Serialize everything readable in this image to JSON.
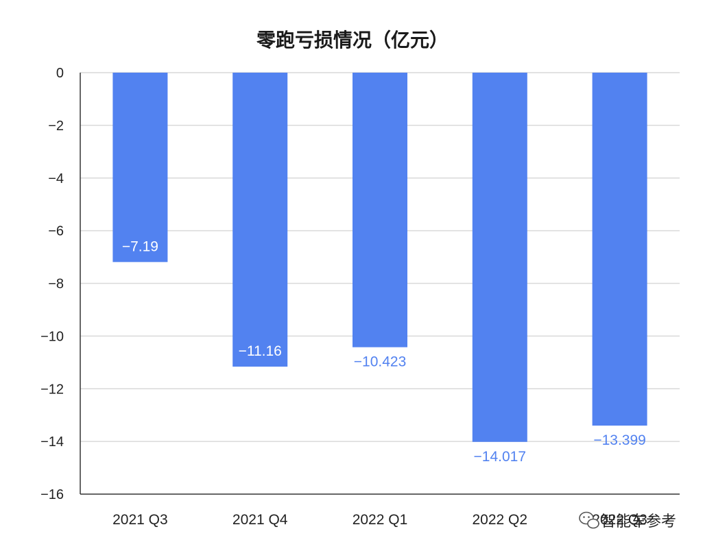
{
  "chart_data": {
    "type": "bar",
    "title": "零跑亏损情况（亿元）",
    "categories": [
      "2021 Q3",
      "2021 Q4",
      "2022 Q1",
      "2022 Q2",
      "2022 Q3"
    ],
    "values": [
      -7.19,
      -11.16,
      -10.423,
      -14.017,
      -13.399
    ],
    "data_labels": [
      "−7.19",
      "−11.16",
      "−10.423",
      "−14.017",
      "−13.399"
    ],
    "ylim": [
      -16,
      0
    ],
    "yticks": [
      0,
      -2,
      -4,
      -6,
      -8,
      -10,
      -12,
      -14,
      -16
    ],
    "ytick_labels": [
      "0",
      "−2",
      "−4",
      "−6",
      "−8",
      "−10",
      "−12",
      "−14",
      "−16"
    ],
    "xlabel": "",
    "ylabel": "",
    "grid": true,
    "bar_color": "#5282f0",
    "label_inside_color": "#ffffff",
    "label_outside_color": "#5282f0"
  },
  "watermark": {
    "text": "智能车参考",
    "icon": "wechat-icon"
  }
}
